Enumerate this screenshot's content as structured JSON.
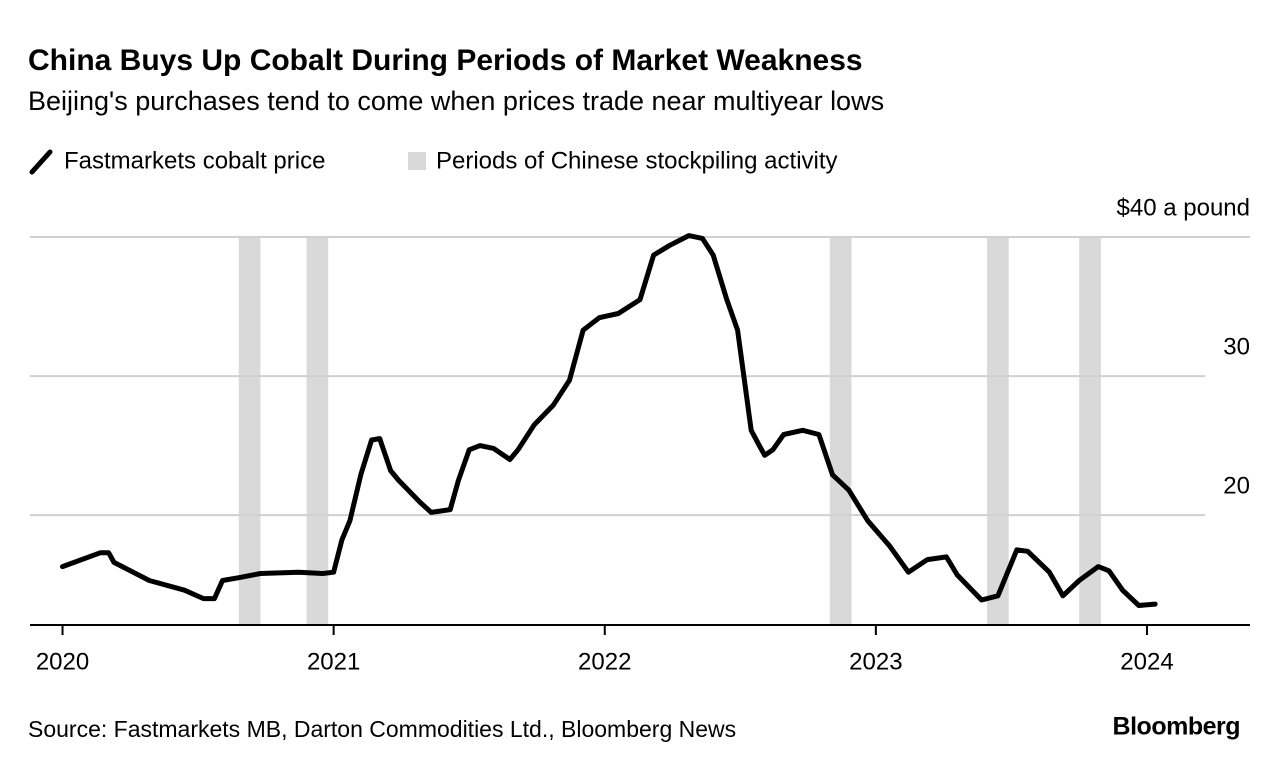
{
  "chart_data": {
    "type": "line",
    "title": "China Buys Up Cobalt During Periods of Market Weakness",
    "subtitle": "Beijing's purchases tend to come when prices trade near multiyear lows",
    "source": "Source: Fastmarkets MB, Darton Commodities Ltd., Bloomberg News",
    "credit": "Bloomberg",
    "x": [
      2020.0,
      2020.14,
      2020.17,
      2020.19,
      2020.32,
      2020.45,
      2020.52,
      2020.56,
      2020.59,
      2020.65,
      2020.73,
      2020.87,
      2020.96,
      2021.0,
      2021.03,
      2021.06,
      2021.1,
      2021.14,
      2021.17,
      2021.21,
      2021.24,
      2021.32,
      2021.36,
      2021.43,
      2021.46,
      2021.5,
      2021.54,
      2021.59,
      2021.65,
      2021.68,
      2021.74,
      2021.81,
      2021.87,
      2021.92,
      2021.98,
      2022.05,
      2022.13,
      2022.18,
      2022.24,
      2022.31,
      2022.36,
      2022.4,
      2022.45,
      2022.49,
      2022.54,
      2022.57,
      2022.59,
      2022.62,
      2022.66,
      2022.73,
      2022.79,
      2022.84,
      2022.9,
      2022.97,
      2023.05,
      2023.12,
      2023.19,
      2023.26,
      2023.3,
      2023.39,
      2023.45,
      2023.52,
      2023.56,
      2023.64,
      2023.69,
      2023.75,
      2023.82,
      2023.86,
      2023.91,
      2023.97,
      2024.03
    ],
    "series": [
      {
        "name": "Fastmarkets cobalt price",
        "color": "#000000",
        "values": [
          16.3,
          17.3,
          17.3,
          16.6,
          15.3,
          14.6,
          14.0,
          14.0,
          15.3,
          15.5,
          15.8,
          15.9,
          15.8,
          15.9,
          18.2,
          19.6,
          22.9,
          25.4,
          25.5,
          23.2,
          22.5,
          20.9,
          20.2,
          20.4,
          22.5,
          24.7,
          25.0,
          24.8,
          24.0,
          24.7,
          26.5,
          27.9,
          29.7,
          33.3,
          34.2,
          34.5,
          35.5,
          38.7,
          39.4,
          40.1,
          39.9,
          38.7,
          35.5,
          33.3,
          26.1,
          25.0,
          24.3,
          24.7,
          25.8,
          26.1,
          25.8,
          22.9,
          21.8,
          19.6,
          17.8,
          15.9,
          16.8,
          17.0,
          15.7,
          13.9,
          14.2,
          17.5,
          17.4,
          15.9,
          14.2,
          15.3,
          16.3,
          16.0,
          14.6,
          13.5,
          13.6
        ]
      }
    ],
    "periods": {
      "name": "Periods of Chinese stockpiling activity",
      "color": "#d9d9d9",
      "ranges": [
        [
          2020.65,
          2020.73
        ],
        [
          2020.9,
          2020.98
        ],
        [
          2022.83,
          2022.91
        ],
        [
          2023.41,
          2023.49
        ],
        [
          2023.75,
          2023.83
        ]
      ]
    },
    "xlim": [
      2019.88,
      2024.38
    ],
    "xticks": [
      2020,
      2021,
      2022,
      2023,
      2024
    ],
    "ylim": [
      12.1,
      40
    ],
    "yticks": [
      20,
      30,
      {
        "value": 40,
        "label": "$40 a pound"
      }
    ],
    "grid": true
  }
}
